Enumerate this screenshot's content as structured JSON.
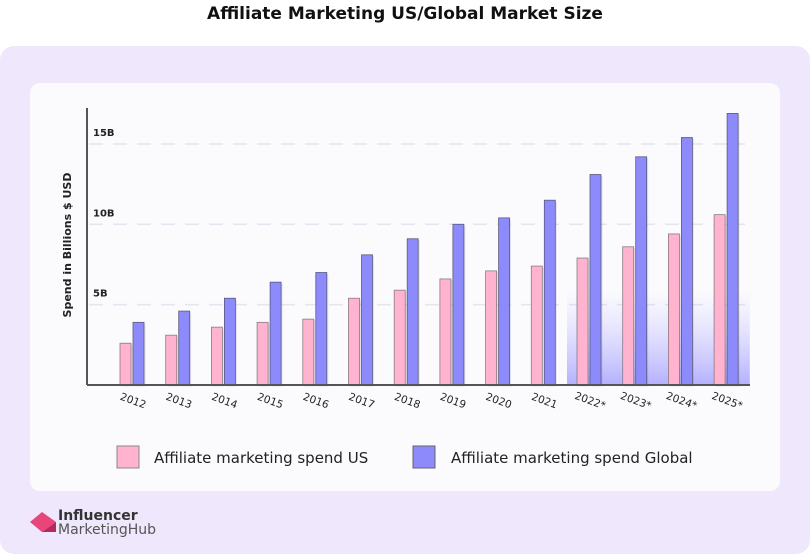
{
  "chart_data": {
    "type": "bar",
    "title": "Affiliate Marketing US/Global Market Size",
    "ylabel": "Spend in Billions $ USD",
    "xlabel": "",
    "ylim": [
      0,
      17.5
    ],
    "yticks": [
      {
        "value": 5,
        "label": "5B"
      },
      {
        "value": 10,
        "label": "10B"
      },
      {
        "value": 15,
        "label": "15B"
      }
    ],
    "grid": true,
    "legend": "bottom",
    "categories": [
      "2012",
      "2013",
      "2014",
      "2015",
      "2016",
      "2017",
      "2018",
      "2019",
      "2020",
      "2021",
      "2022*",
      "2023*",
      "2024*",
      "2025*"
    ],
    "series": [
      {
        "name": "Affiliate marketing spend US",
        "color": "#ffb3cf",
        "values": [
          2.6,
          3.1,
          3.6,
          3.9,
          4.1,
          5.4,
          5.9,
          6.6,
          7.1,
          7.4,
          7.9,
          8.6,
          9.4,
          10.6
        ]
      },
      {
        "name": "Affiliate marketing spend Global",
        "color": "#8d8bfb",
        "values": [
          3.9,
          4.6,
          5.4,
          6.4,
          7.0,
          8.1,
          9.1,
          10.0,
          10.4,
          11.5,
          13.1,
          14.2,
          15.4,
          16.9
        ]
      }
    ],
    "projected_from": "2022*"
  },
  "logo": {
    "line1": "Influencer",
    "line2": "MarketingHub",
    "color": "#e8457a"
  }
}
